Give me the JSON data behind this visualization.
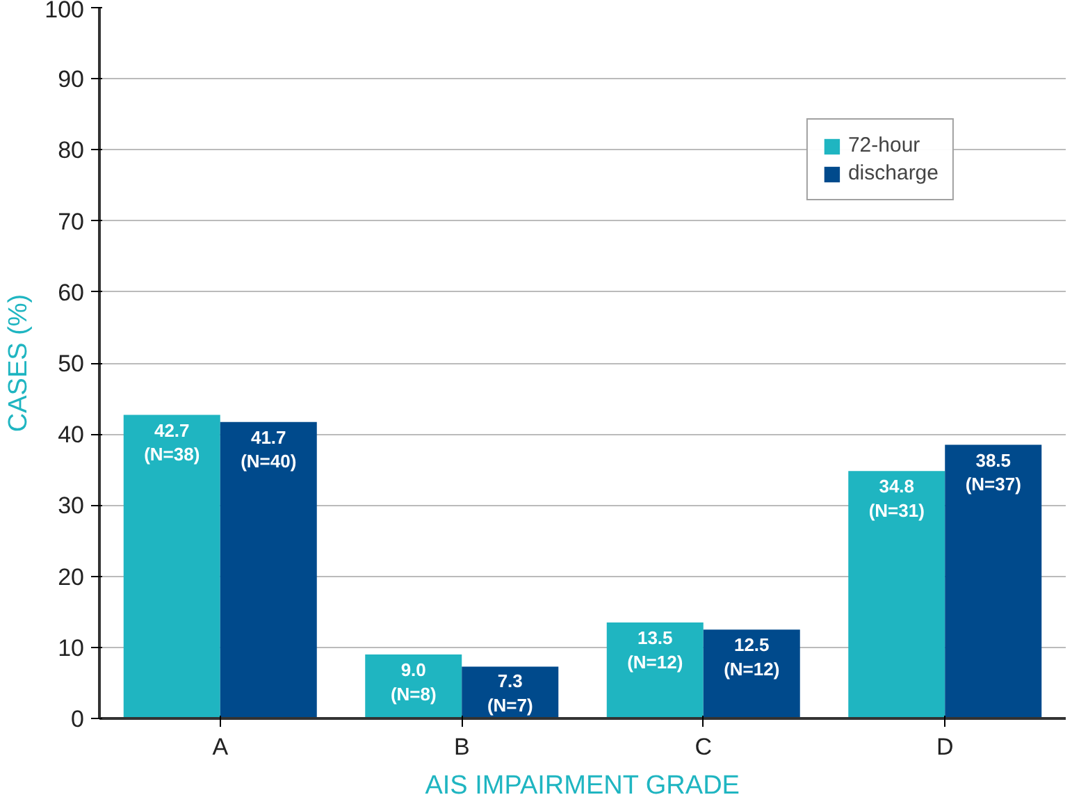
{
  "chart_data": {
    "type": "bar",
    "xlabel": "AIS IMPAIRMENT GRADE",
    "ylabel": "CASES (%)",
    "categories": [
      "A",
      "B",
      "C",
      "D"
    ],
    "series": [
      {
        "name": "72-hour",
        "color": "#1fb5c1",
        "values": [
          42.7,
          9.0,
          13.5,
          34.8
        ],
        "value_labels": [
          "42.7\n(N=38)",
          "9.0\n(N=8)",
          "13.5\n(N=12)",
          "34.8\n(N=31)"
        ]
      },
      {
        "name": "discharge",
        "color": "#004a8c",
        "values": [
          41.7,
          7.3,
          12.5,
          38.5
        ],
        "value_labels": [
          "41.7\n(N=40)",
          "7.3\n(N=7)",
          "12.5\n(N=12)",
          "38.5\n(N=37)"
        ]
      }
    ],
    "ylim": [
      0,
      100
    ],
    "yticks": [
      0,
      10,
      20,
      30,
      40,
      50,
      60,
      70,
      80,
      90,
      100
    ],
    "grid": "y",
    "legend": "top right"
  }
}
